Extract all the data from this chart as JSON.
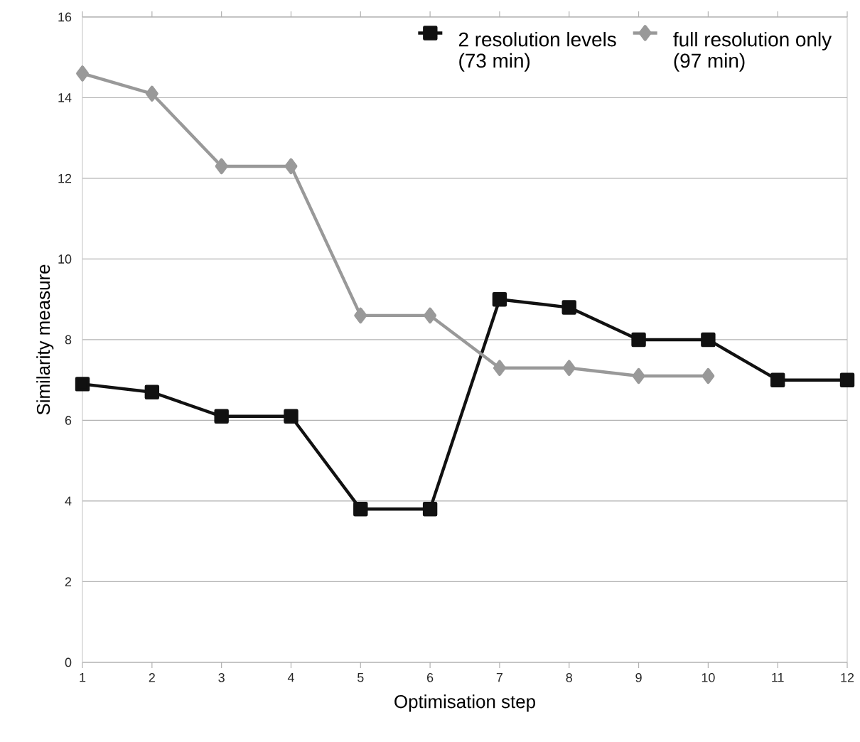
{
  "chart_data": {
    "type": "line",
    "xlabel": "Optimisation step",
    "ylabel": "Similarity measure",
    "x": [
      1,
      2,
      3,
      4,
      5,
      6,
      7,
      8,
      9,
      10,
      11,
      12
    ],
    "series": [
      {
        "name": "2 resolution levels (73 min)",
        "color": "#111111",
        "marker": "square",
        "values": [
          6.9,
          6.7,
          6.1,
          6.1,
          3.8,
          3.8,
          9.0,
          8.8,
          8.0,
          8.0,
          7.0,
          7.0
        ]
      },
      {
        "name": "full resolution only (97 min)",
        "color": "#999999",
        "marker": "diamond",
        "values": [
          14.6,
          14.1,
          12.3,
          12.3,
          8.6,
          8.6,
          7.3,
          7.3,
          7.1,
          7.1,
          null,
          null
        ]
      }
    ],
    "xlim": [
      1,
      12
    ],
    "xticks": [
      1,
      2,
      3,
      4,
      5,
      6,
      7,
      8,
      9,
      10,
      11,
      12
    ],
    "ylim": [
      0,
      16
    ],
    "yticks": [
      0,
      2,
      4,
      6,
      8,
      10,
      12,
      14,
      16
    ],
    "grid": "y",
    "legend": "top right",
    "line_style": "solid"
  }
}
